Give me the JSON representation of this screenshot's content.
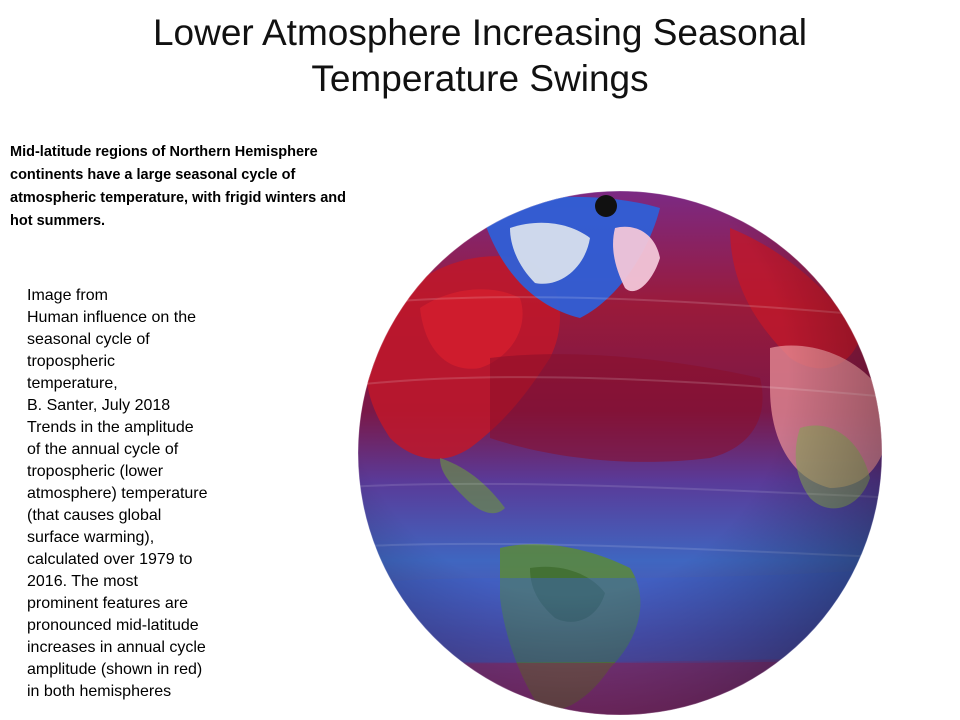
{
  "slide": {
    "title_line1": "Lower Atmosphere Increasing Seasonal",
    "title_line2": "Temperature Swings",
    "lead_text": "Mid-latitude regions of Northern Hemisphere continents have a large seasonal cycle of atmospheric temperature, with frigid winters and hot summers.",
    "caption_lines": [
      "Image from",
      "Human influence on the",
      "seasonal cycle of",
      "tropospheric",
      "temperature,",
      "B. Santer, July 2018",
      "Trends in the amplitude",
      "of the annual cycle of",
      "tropospheric (lower",
      "atmosphere) temperature",
      "(that causes global",
      "surface warming),",
      "calculated over 1979 to",
      "2016. The most",
      "prominent features are",
      "pronounced mid-latitude",
      "increases in annual cycle",
      "amplitude (shown in red)",
      "in both hemispheres"
    ]
  },
  "colors": {
    "warming_red": "#c0182a",
    "deep_red": "#8a0f2a",
    "purple": "#6a2a8a",
    "blue": "#2a5ccf",
    "land_green": "#5a8a3a",
    "ice_white": "#e8ecf2",
    "pink": "#f2c6d8"
  },
  "figure": {
    "type": "globe-map",
    "subject": "tropospheric temperature annual cycle amplitude trends"
  }
}
